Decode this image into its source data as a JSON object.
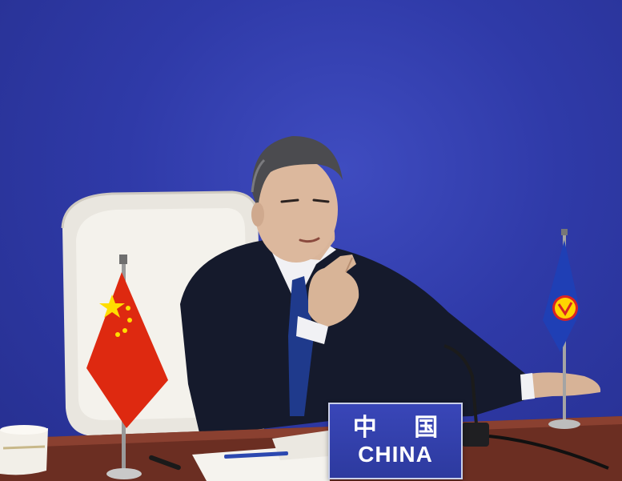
{
  "nameplate": {
    "chinese_text": "中 国",
    "english_text": "CHINA"
  },
  "colors": {
    "backdrop": "#2f3aa8",
    "nameplate": "#3946b8",
    "china_flag_red": "#de2910",
    "china_flag_star": "#ffde00",
    "asean_flag_blue": "#1f3fb5",
    "table": "#6b2e22"
  }
}
